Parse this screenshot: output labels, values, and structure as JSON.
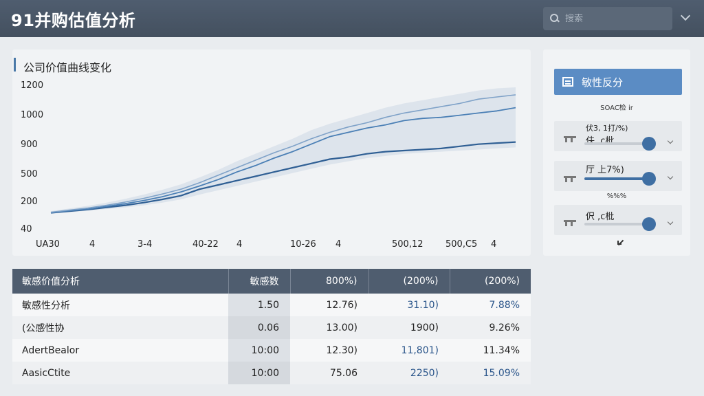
{
  "header": {
    "title": "91并购估值分析",
    "search_placeholder": "搜索"
  },
  "chart_panel": {
    "title": "公司价值曲线变化"
  },
  "chart_data": {
    "type": "line",
    "title": "公司价值曲线变化",
    "y_ticks": [
      "1200",
      "1000",
      "900",
      "500",
      "200",
      "40"
    ],
    "x_ticks": [
      "UA30",
      "4",
      "3-4",
      "40-22",
      "4",
      "10-26",
      "4",
      "500,12",
      "500,C5",
      "4"
    ],
    "ylim": [
      0,
      1250
    ],
    "grid": false,
    "series": [
      {
        "values": [
          80,
          95,
          110,
          130,
          150,
          175,
          205,
          240,
          300,
          340,
          380,
          420,
          460,
          500,
          540,
          580,
          600,
          630,
          650,
          660,
          670,
          680,
          700,
          720,
          730,
          740
        ]
      },
      {
        "values": [
          80,
          100,
          115,
          140,
          165,
          195,
          230,
          275,
          330,
          390,
          460,
          520,
          590,
          650,
          720,
          790,
          830,
          870,
          900,
          940,
          960,
          970,
          990,
          1010,
          1030,
          1060
        ]
      },
      {
        "values": [
          85,
          105,
          125,
          150,
          180,
          215,
          255,
          300,
          360,
          430,
          500,
          570,
          640,
          700,
          770,
          830,
          880,
          920,
          970,
          1010,
          1040,
          1070,
          1100,
          1140,
          1160,
          1180
        ]
      }
    ],
    "band": {
      "upper": [
        95,
        120,
        145,
        175,
        210,
        250,
        295,
        345,
        410,
        480,
        560,
        630,
        700,
        770,
        850,
        910,
        960,
        1010,
        1060,
        1100,
        1130,
        1160,
        1190,
        1220,
        1240,
        1250
      ],
      "lower": [
        70,
        85,
        100,
        115,
        130,
        150,
        175,
        205,
        250,
        290,
        330,
        370,
        410,
        450,
        490,
        530,
        560,
        590,
        610,
        630,
        640,
        650,
        660,
        670,
        680,
        690
      ]
    }
  },
  "side_panel": {
    "button_label": "敏性反分",
    "caption_top": "SOAC检 ir",
    "sliders": [
      {
        "label": "伏3, 1打/%)",
        "sublabel": "伕 ,c枇",
        "value": 0.9
      },
      {
        "label": "厅 上7%)",
        "value": 0.9
      },
      {
        "label": "伬 ,c枇",
        "value": 0.9
      }
    ],
    "caption_mid": "%%%"
  },
  "table": {
    "headers": [
      "敏感价值分析",
      "敏感数",
      "800%)",
      "(200%)",
      "(200%)"
    ],
    "rows": [
      [
        "敏感性分析",
        "1.50",
        "12.76)",
        "31.10)",
        "7.88%"
      ],
      [
        "(公感性协",
        "0.06",
        "13.00)",
        "1900)",
        "9.26%"
      ],
      [
        "AdertBealor",
        "10:00",
        "12.30)",
        "11,801)",
        "11.34%"
      ],
      [
        "AasicCtite",
        "10:00",
        "75.06",
        "2250)",
        "15.09%"
      ]
    ]
  },
  "colors": {
    "header_bg": "#4f5d6f",
    "accent": "#5b8cc4",
    "line_dark": "#3f6fa3",
    "band": "#d4dde8"
  }
}
